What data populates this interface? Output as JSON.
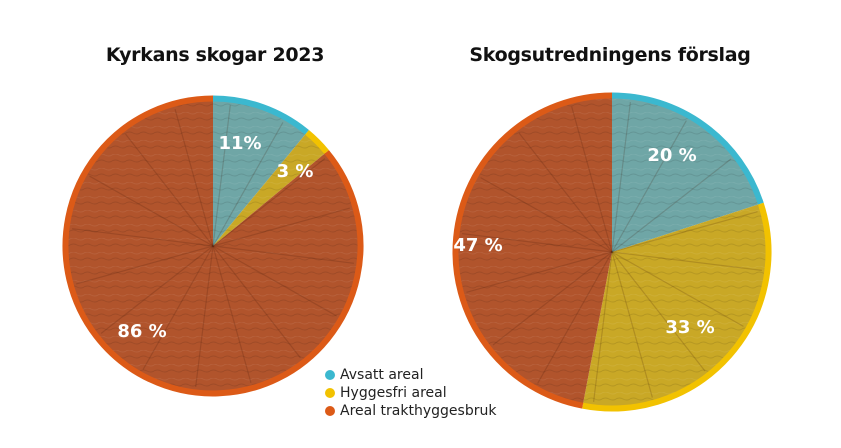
{
  "chart_data": [
    {
      "type": "pie",
      "title": "Kyrkans skogar 2023",
      "categories": [
        "Avsatt areal",
        "Hyggesfri areal",
        "Areal trakthyggesbruk"
      ],
      "values": [
        11,
        3,
        86
      ],
      "labels": [
        "11%",
        "3 %",
        "86 %"
      ]
    },
    {
      "type": "pie",
      "title": "Skogsutredningens förslag",
      "categories": [
        "Avsatt areal",
        "Hyggesfri areal",
        "Areal trakthyggesbruk"
      ],
      "values": [
        20,
        33,
        47
      ],
      "labels": [
        "20 %",
        "33 %",
        "47 %"
      ]
    }
  ],
  "legend": {
    "placement": "bottom-center",
    "items": [
      {
        "label": "Avsatt areal",
        "color": "#3bb8cf"
      },
      {
        "label": "Hyggesfri areal",
        "color": "#f2c200"
      },
      {
        "label": "Areal trakthyggesbruk",
        "color": "#dc5a17"
      }
    ]
  },
  "colors": {
    "ring": [
      "#3bb8cf",
      "#f2c200",
      "#dc5a17"
    ],
    "fill": [
      "#6fa6a6",
      "#c9a826",
      "#b1542c"
    ]
  }
}
